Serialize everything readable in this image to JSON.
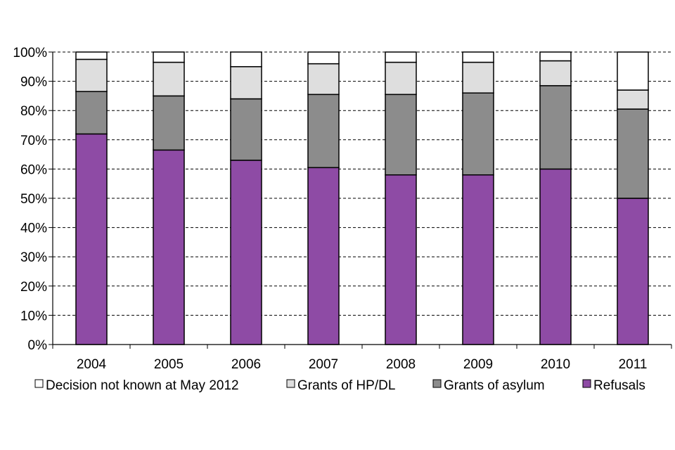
{
  "chart_data": {
    "type": "bar",
    "stacked": true,
    "title": "",
    "xlabel": "",
    "ylabel": "",
    "ylim": [
      0,
      100
    ],
    "y_tick_labels": [
      "0%",
      "10%",
      "20%",
      "30%",
      "40%",
      "50%",
      "60%",
      "70%",
      "80%",
      "90%",
      "100%"
    ],
    "grid": true,
    "legend_position": "bottom",
    "categories": [
      "2004",
      "2005",
      "2006",
      "2007",
      "2008",
      "2009",
      "2010",
      "2011"
    ],
    "series": [
      {
        "name": "Refusals",
        "color": "#8e4ba5",
        "values": [
          72,
          66.5,
          63,
          60.5,
          58,
          58,
          60,
          50
        ]
      },
      {
        "name": "Grants of asylum",
        "color": "#8c8c8c",
        "values": [
          14.5,
          18.5,
          21,
          25,
          27.5,
          28,
          28.5,
          30.5
        ]
      },
      {
        "name": "Grants of HP/DL",
        "color": "#dedede",
        "values": [
          11,
          11.5,
          11,
          10.5,
          11,
          10.5,
          8.5,
          6.5
        ]
      },
      {
        "name": "Decision not known at May 2012",
        "color": "#ffffff",
        "values": [
          2.5,
          3.5,
          5,
          4,
          3.5,
          3.5,
          3,
          13
        ]
      }
    ],
    "legend": [
      {
        "label": "Decision not known at May 2012",
        "color": "#ffffff"
      },
      {
        "label": "Grants of HP/DL",
        "color": "#dedede"
      },
      {
        "label": "Grants of asylum",
        "color": "#8c8c8c"
      },
      {
        "label": "Refusals",
        "color": "#8e4ba5"
      }
    ]
  }
}
